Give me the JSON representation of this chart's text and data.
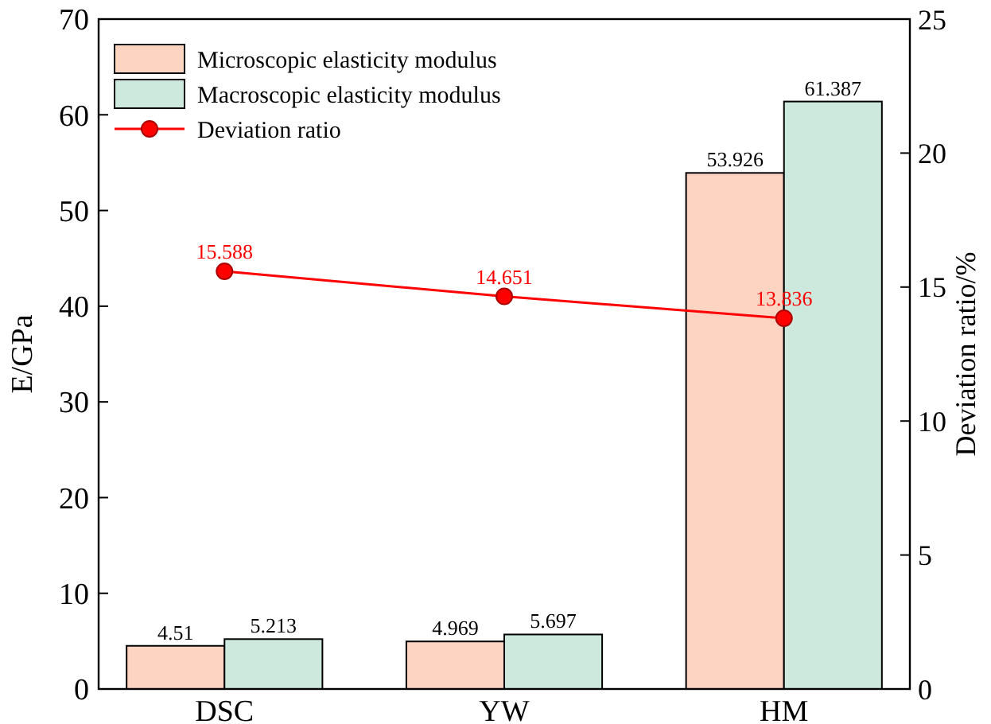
{
  "chart_data": {
    "type": "bar",
    "xlabel": null,
    "ylabel": "E/GPa",
    "y2label": "Deviation ratio/%",
    "categories": [
      "DSC",
      "YW",
      "HM"
    ],
    "series": [
      {
        "name": "Microscopic elasticity modulus",
        "color": "#fdd3c2",
        "values": [
          4.51,
          4.969,
          53.926
        ]
      },
      {
        "name": "Macroscopic elasticity modulus",
        "color": "#cde9de",
        "values": [
          5.213,
          5.697,
          61.387
        ]
      },
      {
        "name": "Deviation ratio",
        "type": "line",
        "axis": "y2",
        "color": "#ff0000",
        "marker": "circle",
        "values": [
          15.588,
          14.651,
          13.836
        ]
      }
    ],
    "ylim": [
      0,
      70
    ],
    "yticks": [
      0,
      10,
      20,
      30,
      40,
      50,
      60,
      70
    ],
    "y2lim": [
      0,
      25
    ],
    "y2ticks": [
      0,
      5,
      10,
      15,
      20,
      25
    ],
    "data_labels": true,
    "legend": "top left",
    "grid": false
  }
}
